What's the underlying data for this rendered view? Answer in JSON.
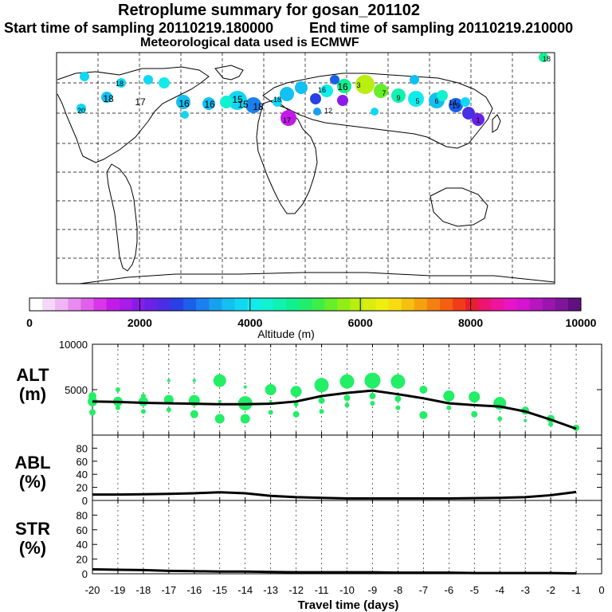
{
  "header": {
    "title": "Retroplume summary for gosan_201102",
    "start": "Start time of sampling 20110219.180000",
    "end": "End time of sampling 20110219.210000",
    "met": "Meteorological data used is ECMWF"
  },
  "colorbar": {
    "label": "Altitude (m)",
    "ticks": [
      "0",
      "2000",
      "4000",
      "6000",
      "8000",
      "10000"
    ],
    "range": [
      0,
      10000
    ],
    "colors": [
      "#ffffff",
      "#f5d7f7",
      "#f0b5f3",
      "#e88cef",
      "#e060ec",
      "#d936e9",
      "#c21be8",
      "#a81be8",
      "#8a1be8",
      "#6a22e8",
      "#4a2ee6",
      "#2840e6",
      "#1a60ea",
      "#1a80ee",
      "#18a0f0",
      "#12c0f2",
      "#10d8f2",
      "#10ecec",
      "#10f2d0",
      "#10f2b0",
      "#10f090",
      "#20ee6c",
      "#3cee48",
      "#66ee28",
      "#90ee14",
      "#b8ee10",
      "#d8ee10",
      "#eeee10",
      "#f6dc10",
      "#f6c010",
      "#f6a010",
      "#f48010",
      "#f46010",
      "#f23c18",
      "#ee1c30",
      "#ee1470",
      "#ee14a0",
      "#e814c8",
      "#d414d0",
      "#b814c0",
      "#9c14b0",
      "#80149a",
      "#601080"
    ]
  },
  "map_labels": [
    "16",
    "17",
    "16",
    "15",
    "15",
    "16",
    "18",
    "18",
    "17",
    "16",
    "18",
    "19",
    "12",
    "1",
    "14",
    "5",
    "6",
    "3",
    "9",
    "7",
    "20",
    "18",
    "18"
  ],
  "chart_data": [
    {
      "type": "scatter",
      "name": "ALT",
      "ylabel": "ALT\n(m)",
      "ylim": [
        0,
        10000
      ],
      "yticks": [
        5000,
        10000
      ],
      "x": [
        -20,
        -19,
        -18,
        -17,
        -16,
        -15,
        -14,
        -13,
        -12,
        -11,
        -10,
        -9,
        -8,
        -7,
        -6,
        -5,
        -4,
        -3,
        -2,
        -1
      ],
      "mean_line": [
        3700,
        3650,
        3550,
        3500,
        3450,
        3400,
        3400,
        3450,
        3700,
        4300,
        4650,
        4900,
        4500,
        4050,
        3500,
        3300,
        3150,
        2600,
        1700,
        700
      ],
      "clusters": [
        [
          4300,
          3700,
          2500
        ],
        [
          5000,
          3700,
          3000
        ],
        [
          4300,
          3700,
          2600
        ],
        [
          6000,
          3900,
          2800
        ],
        [
          6000,
          3800,
          2300
        ],
        [
          3700,
          1800,
          6000
        ],
        [
          5300,
          3500,
          1800
        ],
        [
          3700,
          2500,
          5000
        ],
        [
          4800,
          2300,
          3400
        ],
        [
          5500,
          3800,
          2600
        ],
        [
          5900,
          4100,
          3300
        ],
        [
          6000,
          4300,
          3500
        ],
        [
          5900,
          4000,
          3000
        ],
        [
          5000,
          2200
        ],
        [
          4300,
          3000
        ],
        [
          4200,
          2300
        ],
        [
          3500,
          1800,
          4000
        ],
        [
          2700,
          1600
        ],
        [
          1800,
          1200
        ],
        [
          800
        ]
      ],
      "sizes": [
        [
          5,
          6,
          4
        ],
        [
          3,
          6,
          3
        ],
        [
          3,
          6,
          3
        ],
        [
          2,
          6,
          3
        ],
        [
          2,
          7,
          5
        ],
        [
          2,
          6,
          8
        ],
        [
          2,
          9,
          6
        ],
        [
          2,
          3,
          7
        ],
        [
          7,
          4,
          3
        ],
        [
          9,
          4,
          3
        ],
        [
          9,
          4,
          3
        ],
        [
          10,
          4,
          3
        ],
        [
          9,
          4,
          3
        ],
        [
          5,
          5
        ],
        [
          7,
          3
        ],
        [
          7,
          4
        ],
        [
          8,
          3,
          2
        ],
        [
          5,
          2
        ],
        [
          5,
          3
        ],
        [
          4
        ]
      ],
      "color": "#22ee66"
    },
    {
      "type": "line",
      "name": "ABL",
      "ylabel": "ABL\n(%)",
      "ylim": [
        0,
        100
      ],
      "yticks": [
        0,
        20,
        40,
        60,
        80
      ],
      "x": [
        -20,
        -19,
        -18,
        -17,
        -16,
        -15,
        -14,
        -13,
        -12,
        -11,
        -10,
        -9,
        -8,
        -7,
        -6,
        -5,
        -4,
        -3,
        -2,
        -1
      ],
      "values": [
        9,
        9,
        9.5,
        10,
        11,
        12.5,
        11,
        7,
        5,
        4,
        3,
        3,
        3,
        3,
        3,
        3.5,
        4,
        5,
        8,
        13
      ]
    },
    {
      "type": "line",
      "name": "STR",
      "ylabel": "STR\n(%)",
      "ylim": [
        0,
        100
      ],
      "yticks": [
        0,
        20,
        40,
        60,
        80
      ],
      "x": [
        -20,
        -19,
        -18,
        -17,
        -16,
        -15,
        -14,
        -13,
        -12,
        -11,
        -10,
        -9,
        -8,
        -7,
        -6,
        -5,
        -4,
        -3,
        -2,
        -1
      ],
      "values": [
        6,
        5.5,
        5,
        4,
        3.5,
        3,
        3,
        2.5,
        2,
        2,
        2,
        2,
        1.5,
        1.5,
        1.5,
        1,
        1,
        1,
        1,
        0.5
      ]
    }
  ],
  "xaxis": {
    "label": "Travel time (days)",
    "ticks": [
      "-20",
      "-19",
      "-18",
      "-17",
      "-16",
      "-15",
      "-14",
      "-13",
      "-12",
      "-11",
      "-10",
      "-9",
      "-8",
      "-7",
      "-6",
      "-5",
      "-4",
      "-3",
      "-2",
      "-1",
      "0"
    ]
  }
}
